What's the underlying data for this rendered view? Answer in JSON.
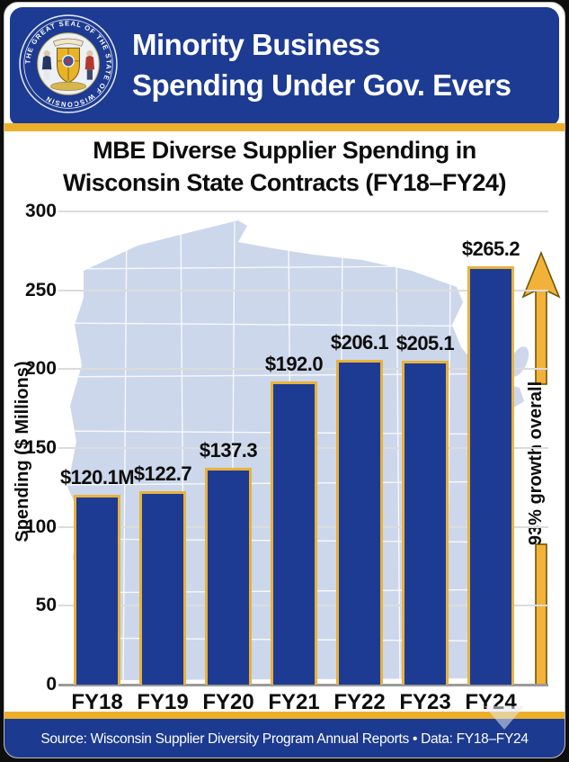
{
  "header": {
    "title_line1": "Minority Business",
    "title_line2": "Spending Under Gov. Evers",
    "seal_ring_text": "THE GREAT SEAL OF THE STATE OF WISCONSIN"
  },
  "chart": {
    "title_line1": "MBE Diverse Supplier Spending in",
    "title_line2": "Wisconsin State Contracts (FY18–FY24)"
  },
  "chart_data": {
    "type": "bar",
    "title": "MBE Diverse Supplier Spending in Wisconsin State Contracts (FY18–FY24)",
    "categories": [
      "FY18",
      "FY19",
      "FY20",
      "FY21",
      "FY22",
      "FY23",
      "FY24"
    ],
    "values": [
      120.1,
      122.7,
      137.3,
      192.0,
      206.1,
      205.1,
      265.2
    ],
    "bar_labels": [
      "$120.1M",
      "$122.7",
      "$137.3",
      "$192.0",
      "$206.1",
      "$205.1",
      "$265.2"
    ],
    "xlabel": "",
    "ylabel": "Spending ($ Millions)",
    "ylim": [
      0,
      300
    ],
    "yticks": [
      0,
      50,
      100,
      150,
      200,
      250,
      300
    ],
    "grid": true,
    "legend": false,
    "annotation": "93% growth overall",
    "bar_color": "#1d3b92",
    "bar_border_color": "#e9b23c",
    "background_motif": "wisconsin-state-map"
  },
  "footer": {
    "text": "Source: Wisconsin Supplier Diversity Program Annual Reports • Data: FY18–FY24"
  },
  "colors": {
    "navy": "#1d3b92",
    "gold": "#ecaf2a",
    "map_fill": "#ccd7eb",
    "grid_line": "#dcdcdc",
    "text": "#0d0d0d",
    "white": "#ffffff"
  }
}
